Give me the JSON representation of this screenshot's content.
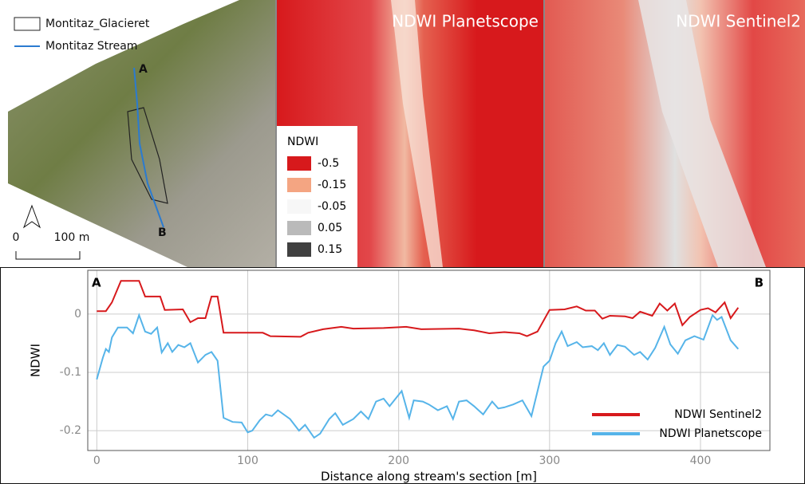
{
  "maps": {
    "overlay_legend": [
      "Montitaz_Glacieret",
      "Montitaz Stream"
    ],
    "points": [
      "A",
      "B"
    ],
    "scale": [
      "0",
      "100 m"
    ],
    "panel_titles": [
      "NDWI Planetscope",
      "NDWI Sentinel2"
    ],
    "ndwi_legend": {
      "title": "NDWI",
      "items": [
        {
          "label": "-0.5",
          "color": "#d7191c"
        },
        {
          "label": "-0.15",
          "color": "#f4a582"
        },
        {
          "label": "-0.05",
          "color": "#f7f7f7"
        },
        {
          "label": "0.05",
          "color": "#bababa"
        },
        {
          "label": "0.15",
          "color": "#404040"
        }
      ]
    }
  },
  "chart_data": {
    "type": "line",
    "x_label": "Distance along stream's section [m]",
    "y_label": "NDWI",
    "annotations": [
      "A",
      "B"
    ],
    "xlim": [
      -6,
      446
    ],
    "ylim": [
      -0.234,
      0.075
    ],
    "xticks": [
      0,
      100,
      200,
      300,
      400
    ],
    "yticks": [
      -0.2,
      -0.1,
      0
    ],
    "grid": true,
    "legend": "lower right",
    "series": [
      {
        "name": "NDWI Sentinel2",
        "color": "#d7191c",
        "x": [
          0,
          6,
          10,
          16,
          28,
          32,
          42,
          45,
          57,
          62,
          67,
          72,
          76,
          80,
          84,
          110,
          115,
          135,
          140,
          150,
          162,
          170,
          190,
          205,
          215,
          240,
          250,
          260,
          270,
          280,
          285,
          292,
          300,
          310,
          318,
          324,
          330,
          335,
          340,
          350,
          355,
          360,
          368,
          373,
          378,
          383,
          388,
          393,
          400,
          405,
          410,
          416,
          420,
          425
        ],
        "values": [
          0.005,
          0.005,
          0.02,
          0.057,
          0.057,
          0.03,
          0.03,
          0.007,
          0.008,
          -0.014,
          -0.007,
          -0.007,
          0.03,
          0.03,
          -0.032,
          -0.032,
          -0.038,
          -0.039,
          -0.032,
          -0.026,
          -0.022,
          -0.025,
          -0.024,
          -0.022,
          -0.026,
          -0.025,
          -0.028,
          -0.033,
          -0.031,
          -0.033,
          -0.038,
          -0.03,
          0.007,
          0.008,
          0.013,
          0.006,
          0.006,
          -0.008,
          -0.003,
          -0.004,
          -0.007,
          0.004,
          -0.003,
          0.018,
          0.006,
          0.018,
          -0.019,
          -0.005,
          0.007,
          0.01,
          0.003,
          0.02,
          -0.007,
          0.011
        ]
      },
      {
        "name": "NDWI Planetscope",
        "color": "#56b4e9",
        "x": [
          0,
          4,
          6,
          8,
          10,
          14,
          20,
          24,
          28,
          32,
          36,
          40,
          43,
          47,
          50,
          54,
          58,
          62,
          67,
          72,
          76,
          80,
          84,
          90,
          96,
          100,
          103,
          108,
          112,
          116,
          120,
          128,
          134,
          138,
          144,
          148,
          154,
          158,
          163,
          170,
          175,
          180,
          185,
          190,
          194,
          198,
          202,
          207,
          210,
          216,
          220,
          226,
          232,
          236,
          240,
          245,
          250,
          256,
          262,
          266,
          270,
          276,
          282,
          288,
          296,
          300,
          304,
          308,
          312,
          318,
          322,
          328,
          332,
          336,
          340,
          345,
          350,
          356,
          360,
          365,
          370,
          376,
          380,
          385,
          390,
          396,
          402,
          408,
          411,
          414,
          420,
          425
        ],
        "values": [
          -0.112,
          -0.075,
          -0.06,
          -0.065,
          -0.04,
          -0.023,
          -0.023,
          -0.033,
          -0.002,
          -0.03,
          -0.034,
          -0.023,
          -0.066,
          -0.05,
          -0.065,
          -0.053,
          -0.057,
          -0.05,
          -0.083,
          -0.07,
          -0.065,
          -0.08,
          -0.178,
          -0.185,
          -0.186,
          -0.203,
          -0.2,
          -0.182,
          -0.172,
          -0.175,
          -0.165,
          -0.18,
          -0.2,
          -0.19,
          -0.212,
          -0.205,
          -0.18,
          -0.17,
          -0.19,
          -0.18,
          -0.167,
          -0.18,
          -0.15,
          -0.145,
          -0.158,
          -0.145,
          -0.132,
          -0.178,
          -0.148,
          -0.15,
          -0.155,
          -0.165,
          -0.158,
          -0.18,
          -0.15,
          -0.148,
          -0.158,
          -0.172,
          -0.15,
          -0.162,
          -0.16,
          -0.155,
          -0.148,
          -0.175,
          -0.09,
          -0.08,
          -0.05,
          -0.03,
          -0.055,
          -0.048,
          -0.057,
          -0.055,
          -0.062,
          -0.05,
          -0.07,
          -0.053,
          -0.056,
          -0.07,
          -0.065,
          -0.078,
          -0.058,
          -0.022,
          -0.052,
          -0.068,
          -0.045,
          -0.038,
          -0.044,
          -0.002,
          -0.01,
          -0.005,
          -0.045,
          -0.06
        ]
      }
    ]
  }
}
